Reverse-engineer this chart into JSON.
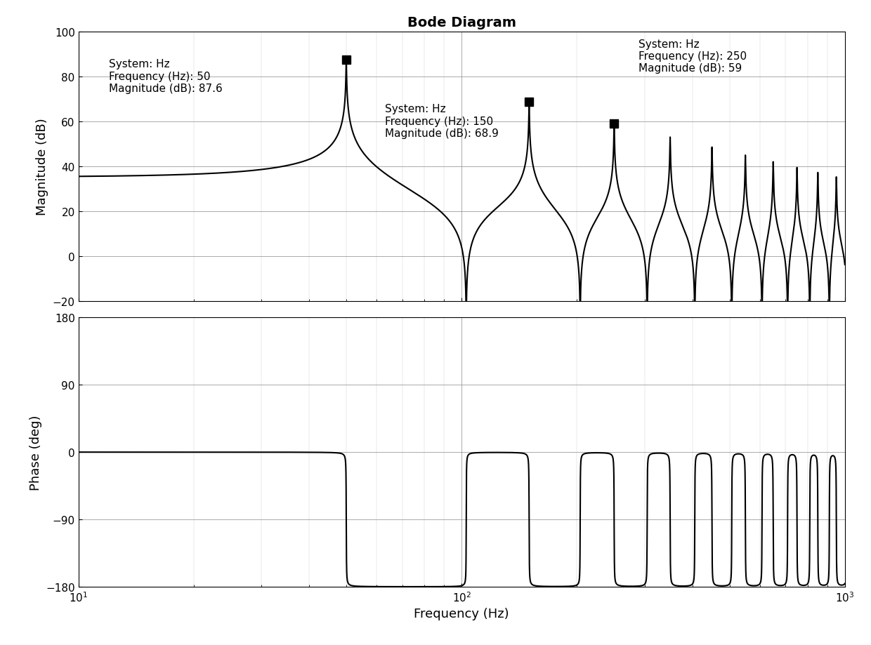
{
  "title": "Bode Diagram",
  "xlabel": "Frequency (Hz)",
  "ylabel_mag": "Magnitude (dB)",
  "ylabel_phase": "Phase (deg)",
  "freq_min": 10,
  "freq_max": 1000,
  "mag_ylim": [
    -20,
    100
  ],
  "mag_yticks": [
    -20,
    0,
    20,
    40,
    60,
    80,
    100
  ],
  "phase_ylim": [
    -180,
    180
  ],
  "phase_yticks": [
    -180,
    -90,
    0,
    90,
    180
  ],
  "annotations": [
    {
      "freq": 50,
      "mag": 87.6,
      "label": "System: Hz\nFrequency (Hz): 50\nMagnitude (dB): 87.6"
    },
    {
      "freq": 150,
      "mag": 68.9,
      "label": "System: Hz\nFrequency (Hz): 150\nMagnitude (dB): 68.9"
    },
    {
      "freq": 250,
      "mag": 59,
      "label": "System: Hz\nFrequency (Hz): 250\nMagnitude (dB): 59"
    }
  ],
  "fundamental_hz": 50,
  "num_harmonics": 20,
  "damping": 0.001,
  "line_color": "#000000",
  "line_width": 1.5,
  "bg_color": "#ffffff",
  "marker_size": 8,
  "annotation_fontsize": 11,
  "title_fontsize": 14,
  "label_fontsize": 13,
  "tick_fontsize": 11
}
